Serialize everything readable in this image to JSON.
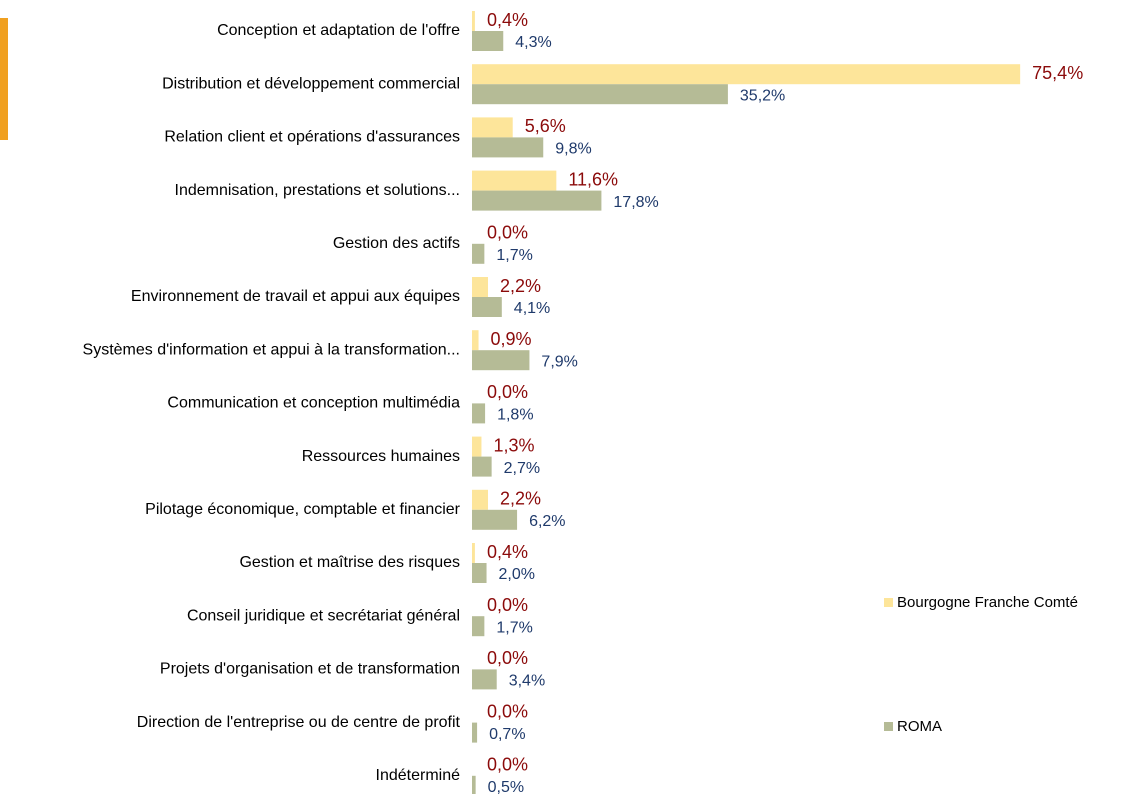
{
  "chart_data": {
    "type": "bar",
    "orientation": "horizontal",
    "categories": [
      "Conception et adaptation de l'offre",
      "Distribution et développement commercial",
      "Relation client et opérations d'assurances",
      "Indemnisation, prestations et solutions...",
      "Gestion des actifs",
      "Environnement de travail et appui aux équipes",
      "Systèmes d'information et appui à la transformation...",
      "Communication et conception multimédia",
      "Ressources humaines",
      "Pilotage économique, comptable et financier",
      "Gestion et maîtrise des risques",
      "Conseil juridique et secrétariat général",
      "Projets d'organisation et de transformation",
      "Direction de l'entreprise ou de centre de profit",
      "Indéterminé"
    ],
    "series": [
      {
        "name": "Bourgogne Franche Comté",
        "color": "#fde59a",
        "values": [
          0.4,
          75.4,
          5.6,
          11.6,
          0,
          2.2,
          0.9,
          0,
          1.3,
          2.2,
          0.4,
          0,
          0,
          0,
          0
        ],
        "value_labels": [
          "0,4%",
          "75,4%",
          "5,6%",
          "11,6%",
          "0,0%",
          "2,2%",
          "0,9%",
          "0,0%",
          "1,3%",
          "2,2%",
          "0,4%",
          "0,0%",
          "0,0%",
          "0,0%",
          "0,0%"
        ]
      },
      {
        "name": "ROMA",
        "color": "#b5bb96",
        "values": [
          4.3,
          35.2,
          9.8,
          17.8,
          1.7,
          4.1,
          7.9,
          1.8,
          2.7,
          6.2,
          2.0,
          1.7,
          3.4,
          0.7,
          0.5
        ],
        "value_labels": [
          "4,3%",
          "35,2%",
          "9,8%",
          "17,8%",
          "1,7%",
          "4,1%",
          "7,9%",
          "1,8%",
          "2,7%",
          "6,2%",
          "2,0%",
          "1,7%",
          "3,4%",
          "0,7%",
          "0,5%"
        ]
      }
    ],
    "xlim": [
      0,
      80
    ]
  }
}
